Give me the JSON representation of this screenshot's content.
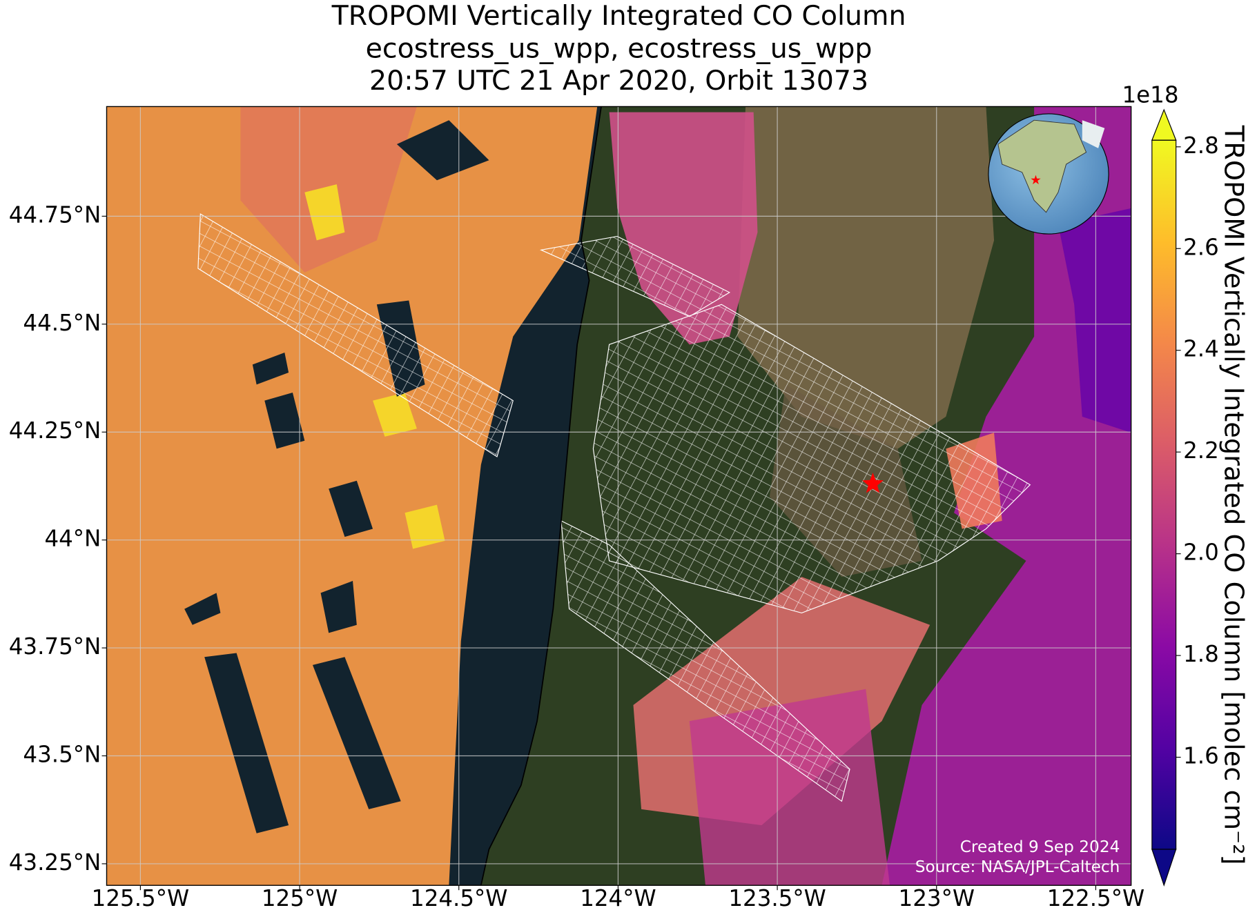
{
  "chart_data": {
    "type": "map",
    "title": [
      "TROPOMI Vertically Integrated CO Column",
      "ecostress_us_wpp, ecostress_us_wpp",
      "20:57 UTC 21 Apr 2020, Orbit 13073"
    ],
    "xlim": [
      -125.606,
      -122.389
    ],
    "ylim": [
      43.2,
      45.004
    ],
    "xticks": [
      {
        "value": -125.5,
        "label": "125.5°W"
      },
      {
        "value": -125,
        "label": "125°W"
      },
      {
        "value": -124.5,
        "label": "124.5°W"
      },
      {
        "value": -124,
        "label": "124°W"
      },
      {
        "value": -123.5,
        "label": "123.5°W"
      },
      {
        "value": -123,
        "label": "123°W"
      },
      {
        "value": -122.5,
        "label": "122.5°W"
      }
    ],
    "yticks": [
      {
        "value": 43.25,
        "label": "43.25°N"
      },
      {
        "value": 43.5,
        "label": "43.5°N"
      },
      {
        "value": 43.75,
        "label": "43.75°N"
      },
      {
        "value": 44,
        "label": "44°N"
      },
      {
        "value": 44.25,
        "label": "44.25°N"
      },
      {
        "value": 44.5,
        "label": "44.5°N"
      },
      {
        "value": 44.75,
        "label": "44.75°N"
      }
    ],
    "grid": true,
    "marker": {
      "x": -123.2,
      "y": 44.13,
      "color": "#ff0000"
    },
    "colorbar": {
      "label": "TROPOMI Vertically Integrated CO Column [molec cm⁻²]",
      "offset_label": "1e18",
      "lim": [
        1.419,
        2.813
      ],
      "ticks": [
        1.6,
        1.8,
        {
          "value": 2,
          "label": "2.0"
        },
        2.2,
        2.4,
        2.6,
        2.8
      ],
      "colormap": [
        "#0d0887",
        "#5302a3",
        "#8b0aa5",
        "#b83289",
        "#db5c68",
        "#f48849",
        "#febd2a",
        "#f0f921"
      ]
    },
    "annotations": [
      "Created 9 Sep 2024",
      "Source: NASA/JPL-Caltech"
    ]
  }
}
